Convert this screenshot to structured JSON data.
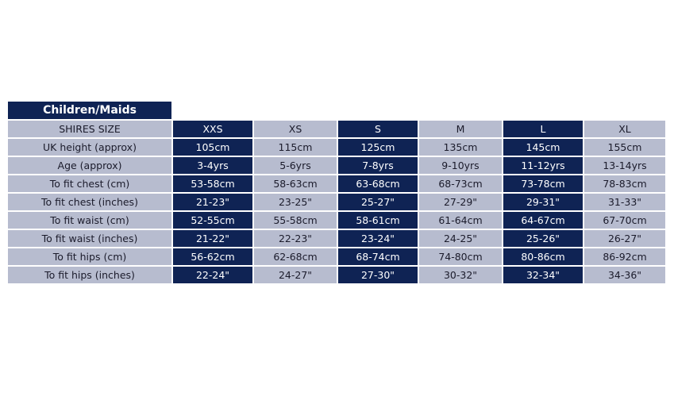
{
  "table": {
    "title": "Children/Maids",
    "header": {
      "label": "SHIRES SIZE",
      "cells": [
        "XXS",
        "XS",
        "S",
        "M",
        "L",
        "XL"
      ]
    },
    "rows": [
      {
        "label": "UK height (approx)",
        "cells": [
          "105cm",
          "115cm",
          "125cm",
          "135cm",
          "145cm",
          "155cm"
        ]
      },
      {
        "label": "Age (approx)",
        "cells": [
          "3-4yrs",
          "5-6yrs",
          "7-8yrs",
          "9-10yrs",
          "11-12yrs",
          "13-14yrs"
        ]
      },
      {
        "label": "To fit chest (cm)",
        "cells": [
          "53-58cm",
          "58-63cm",
          "63-68cm",
          "68-73cm",
          "73-78cm",
          "78-83cm"
        ]
      },
      {
        "label": "To fit chest (inches)",
        "cells": [
          "21-23\"",
          "23-25\"",
          "25-27\"",
          "27-29\"",
          "29-31\"",
          "31-33\""
        ]
      },
      {
        "label": "To fit waist (cm)",
        "cells": [
          "52-55cm",
          "55-58cm",
          "58-61cm",
          "61-64cm",
          "64-67cm",
          "67-70cm"
        ]
      },
      {
        "label": "To fit waist (inches)",
        "cells": [
          "21-22\"",
          "22-23\"",
          "23-24\"",
          "24-25\"",
          "25-26\"",
          "26-27\""
        ]
      },
      {
        "label": "To fit hips (cm)",
        "cells": [
          "56-62cm",
          "62-68cm",
          "68-74cm",
          "74-80cm",
          "80-86cm",
          "86-92cm"
        ]
      },
      {
        "label": "To fit hips (inches)",
        "cells": [
          "22-24\"",
          "24-27\"",
          "27-30\"",
          "30-32\"",
          "32-34\"",
          "34-36\""
        ]
      }
    ]
  }
}
